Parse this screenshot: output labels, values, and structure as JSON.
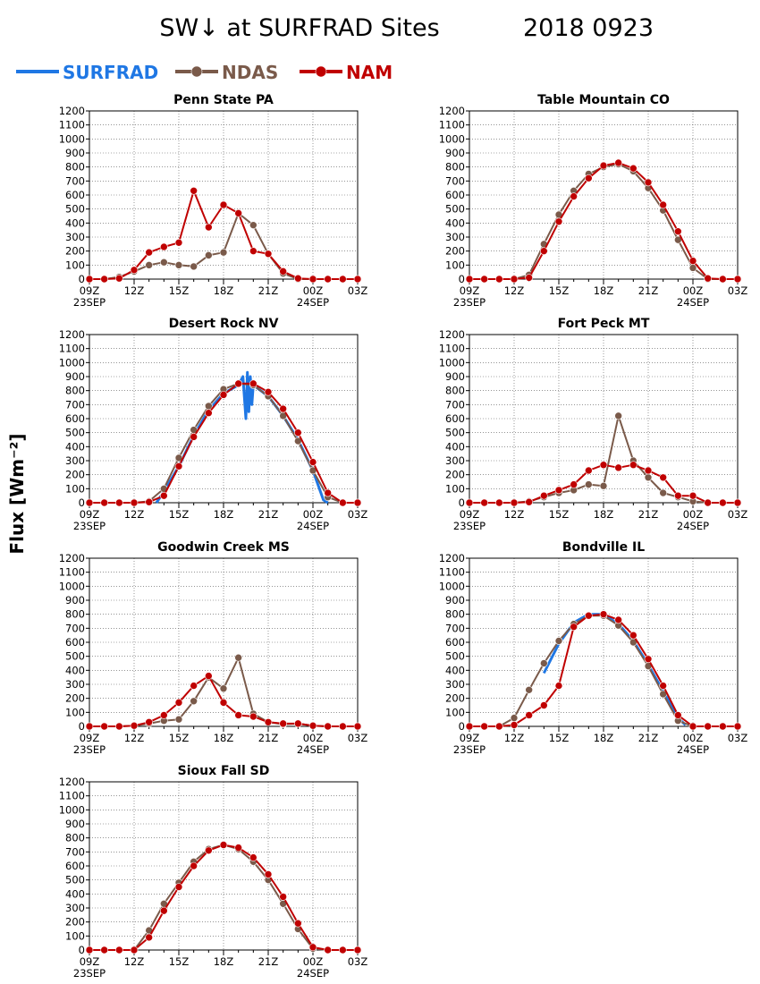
{
  "title": "SW↓ at SURFRAD Sites",
  "date": "2018 0923",
  "ylabel": "Flux [Wm⁻²]",
  "legend": [
    {
      "name": "SURFRAD",
      "color": "#1f77e4",
      "marker": false
    },
    {
      "name": "NDAS",
      "color": "#7a5a4a",
      "marker": true
    },
    {
      "name": "NAM",
      "color": "#c00000",
      "marker": true
    }
  ],
  "axis": {
    "xlim": [
      9,
      27
    ],
    "ylim": [
      0,
      1200
    ],
    "ytick_step": 100,
    "xticks": [
      {
        "x": 9,
        "label": "09Z",
        "sub": "23SEP"
      },
      {
        "x": 12,
        "label": "12Z",
        "sub": ""
      },
      {
        "x": 15,
        "label": "15Z",
        "sub": ""
      },
      {
        "x": 18,
        "label": "18Z",
        "sub": ""
      },
      {
        "x": 21,
        "label": "21Z",
        "sub": ""
      },
      {
        "x": 24,
        "label": "00Z",
        "sub": "24SEP"
      },
      {
        "x": 27,
        "label": "03Z",
        "sub": ""
      }
    ],
    "grid": true
  },
  "chart_data": [
    {
      "type": "line",
      "title": "Penn State PA",
      "series": [
        {
          "name": "NDAS",
          "x": [
            9,
            10,
            11,
            12,
            13,
            14,
            15,
            16,
            17,
            18,
            19,
            20,
            21,
            22,
            23,
            24,
            25,
            26,
            27
          ],
          "values": [
            0,
            0,
            15,
            55,
            100,
            120,
            100,
            90,
            170,
            190,
            470,
            385,
            180,
            40,
            0,
            0,
            0,
            0,
            0
          ]
        },
        {
          "name": "NAM",
          "x": [
            9,
            10,
            11,
            12,
            13,
            14,
            15,
            16,
            17,
            18,
            19,
            20,
            21,
            22,
            23,
            24,
            25,
            26,
            27
          ],
          "values": [
            0,
            0,
            5,
            65,
            190,
            230,
            260,
            630,
            370,
            530,
            470,
            200,
            180,
            55,
            5,
            0,
            0,
            0,
            0
          ]
        }
      ]
    },
    {
      "type": "line",
      "title": "Table Mountain CO",
      "series": [
        {
          "name": "NDAS",
          "x": [
            9,
            10,
            11,
            12,
            13,
            14,
            15,
            16,
            17,
            18,
            19,
            20,
            21,
            22,
            23,
            24,
            25,
            26,
            27
          ],
          "values": [
            0,
            0,
            0,
            0,
            30,
            250,
            460,
            630,
            750,
            800,
            820,
            770,
            650,
            490,
            280,
            80,
            0,
            0,
            0
          ]
        },
        {
          "name": "NAM",
          "x": [
            9,
            10,
            11,
            12,
            13,
            14,
            15,
            16,
            17,
            18,
            19,
            20,
            21,
            22,
            23,
            24,
            25,
            26,
            27
          ],
          "values": [
            0,
            0,
            0,
            0,
            10,
            200,
            410,
            590,
            720,
            810,
            830,
            790,
            690,
            530,
            340,
            130,
            5,
            0,
            0
          ]
        }
      ]
    },
    {
      "type": "line",
      "title": "Desert Rock NV",
      "series": [
        {
          "name": "SURFRAD",
          "x": [
            13.5,
            14,
            15,
            16,
            17,
            18,
            19,
            19.3,
            19.5,
            19.6,
            19.7,
            19.8,
            19.9,
            20,
            21,
            22,
            23,
            24,
            24.7,
            25
          ],
          "values": [
            0,
            80,
            260,
            480,
            660,
            780,
            840,
            900,
            600,
            930,
            650,
            900,
            700,
            840,
            760,
            620,
            450,
            230,
            20,
            0
          ]
        },
        {
          "name": "NDAS",
          "x": [
            9,
            10,
            11,
            12,
            13,
            14,
            15,
            16,
            17,
            18,
            19,
            20,
            21,
            22,
            23,
            24,
            25,
            26,
            27
          ],
          "values": [
            0,
            0,
            0,
            0,
            10,
            100,
            320,
            520,
            690,
            810,
            850,
            840,
            760,
            620,
            440,
            230,
            40,
            0,
            0
          ]
        },
        {
          "name": "NAM",
          "x": [
            9,
            10,
            11,
            12,
            13,
            14,
            15,
            16,
            17,
            18,
            19,
            20,
            21,
            22,
            23,
            24,
            25,
            26,
            27
          ],
          "values": [
            0,
            0,
            0,
            0,
            5,
            50,
            260,
            470,
            640,
            770,
            850,
            850,
            790,
            670,
            500,
            290,
            70,
            0,
            0
          ]
        }
      ]
    },
    {
      "type": "line",
      "title": "Fort Peck MT",
      "series": [
        {
          "name": "NDAS",
          "x": [
            9,
            10,
            11,
            12,
            13,
            14,
            15,
            16,
            17,
            18,
            19,
            20,
            21,
            22,
            23,
            24,
            25,
            26,
            27
          ],
          "values": [
            0,
            0,
            0,
            0,
            10,
            40,
            70,
            90,
            130,
            120,
            620,
            300,
            180,
            70,
            40,
            10,
            0,
            0,
            0
          ]
        },
        {
          "name": "NAM",
          "x": [
            9,
            10,
            11,
            12,
            13,
            14,
            15,
            16,
            17,
            18,
            19,
            20,
            21,
            22,
            23,
            24,
            25,
            26,
            27
          ],
          "values": [
            0,
            0,
            0,
            0,
            5,
            50,
            90,
            130,
            230,
            270,
            250,
            270,
            230,
            180,
            50,
            50,
            0,
            0,
            0
          ]
        }
      ]
    },
    {
      "type": "line",
      "title": "Goodwin Creek MS",
      "series": [
        {
          "name": "NDAS",
          "x": [
            9,
            10,
            11,
            12,
            13,
            14,
            15,
            16,
            17,
            18,
            19,
            20,
            21,
            22,
            23,
            24,
            25,
            26,
            27
          ],
          "values": [
            0,
            0,
            0,
            5,
            20,
            40,
            50,
            180,
            350,
            270,
            490,
            90,
            30,
            15,
            20,
            5,
            0,
            0,
            0
          ]
        },
        {
          "name": "NAM",
          "x": [
            9,
            10,
            11,
            12,
            13,
            14,
            15,
            16,
            17,
            18,
            19,
            20,
            21,
            22,
            23,
            24,
            25,
            26,
            27
          ],
          "values": [
            0,
            0,
            0,
            5,
            30,
            80,
            170,
            290,
            360,
            170,
            80,
            70,
            30,
            20,
            20,
            5,
            0,
            0,
            0
          ]
        }
      ]
    },
    {
      "type": "line",
      "title": "Bondville IL",
      "series": [
        {
          "name": "SURFRAD",
          "x": [
            14,
            15,
            16,
            17,
            18,
            19,
            20,
            21,
            22,
            23,
            23.5
          ],
          "values": [
            380,
            590,
            740,
            800,
            800,
            730,
            610,
            440,
            250,
            60,
            10
          ]
        },
        {
          "name": "NDAS",
          "x": [
            9,
            10,
            11,
            12,
            13,
            14,
            15,
            16,
            17,
            18,
            19,
            20,
            21,
            22,
            23,
            24,
            25,
            26,
            27
          ],
          "values": [
            0,
            0,
            0,
            60,
            260,
            450,
            610,
            730,
            790,
            790,
            720,
            600,
            430,
            230,
            40,
            0,
            0,
            0,
            0
          ]
        },
        {
          "name": "NAM",
          "x": [
            9,
            10,
            11,
            12,
            13,
            14,
            15,
            16,
            17,
            18,
            19,
            20,
            21,
            22,
            23,
            24,
            25,
            26,
            27
          ],
          "values": [
            0,
            0,
            0,
            10,
            80,
            150,
            290,
            710,
            790,
            800,
            760,
            650,
            480,
            290,
            80,
            0,
            0,
            0,
            0
          ]
        }
      ]
    },
    {
      "type": "line",
      "title": "Sioux Fall SD",
      "series": [
        {
          "name": "NDAS",
          "x": [
            9,
            10,
            11,
            12,
            13,
            14,
            15,
            16,
            17,
            18,
            19,
            20,
            21,
            22,
            23,
            24,
            25,
            26,
            27
          ],
          "values": [
            0,
            0,
            0,
            0,
            140,
            330,
            480,
            630,
            720,
            750,
            720,
            630,
            500,
            330,
            150,
            10,
            0,
            0,
            0
          ]
        },
        {
          "name": "NAM",
          "x": [
            9,
            10,
            11,
            12,
            13,
            14,
            15,
            16,
            17,
            18,
            19,
            20,
            21,
            22,
            23,
            24,
            25,
            26,
            27
          ],
          "values": [
            0,
            0,
            0,
            0,
            90,
            280,
            450,
            600,
            710,
            750,
            730,
            660,
            540,
            380,
            190,
            20,
            0,
            0,
            0
          ]
        }
      ]
    }
  ]
}
